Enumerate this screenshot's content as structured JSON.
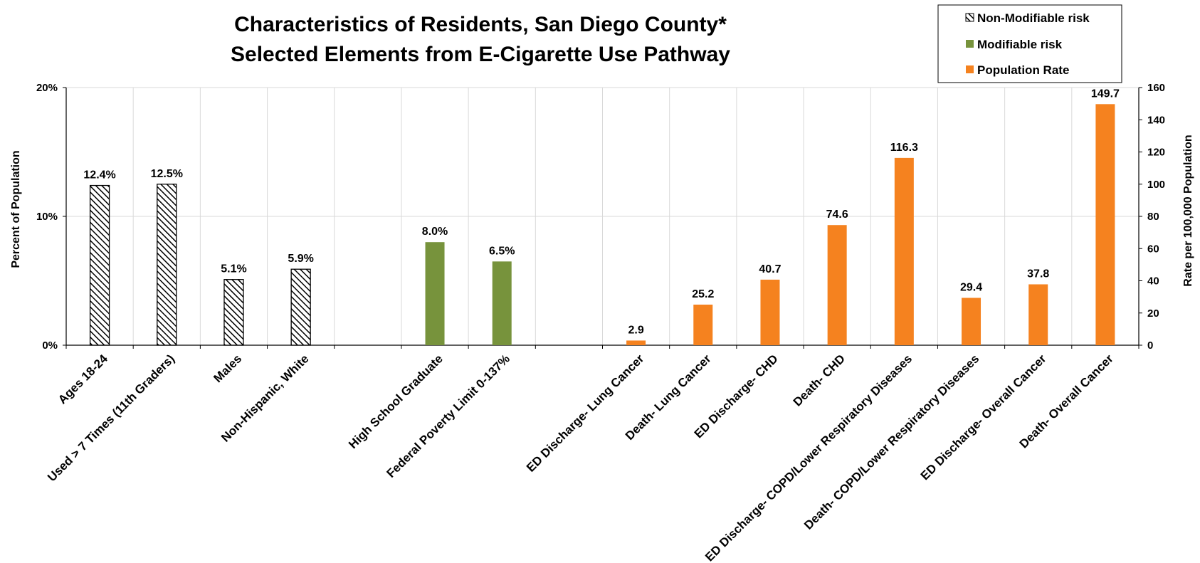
{
  "chart_data": {
    "type": "bar",
    "title": [
      "Characteristics of Residents, San Diego County*",
      "Selected Elements from E-Cigarette Use Pathway"
    ],
    "ylabel_left": "Percent of Population",
    "ylabel_right": "Rate per 100,000 Population",
    "ylim_left": [
      0,
      20
    ],
    "ylim_right": [
      0,
      160
    ],
    "yticks_left": [
      "0%",
      "10%",
      "20%"
    ],
    "yticks_right": [
      "0",
      "20",
      "40",
      "60",
      "80",
      "100",
      "120",
      "140",
      "160"
    ],
    "grid": true,
    "legend_position": "top-right",
    "colors": {
      "modifiable": "#77933c",
      "population": "#f5821f",
      "nonmodifiable_stroke": "#000000"
    },
    "categories": [
      "Ages 18-24",
      "Used > 7 Times (11th Graders)",
      "Males",
      "Non-Hispanic, White",
      "",
      "High School Graduate",
      "Federal Poverty Limit 0-137%",
      "",
      "ED Discharge- Lung Cancer",
      "Death- Lung Cancer",
      "ED Discharge- CHD",
      "Death- CHD",
      "ED Discharge- COPD/Lower Respiratory Diseases",
      "Death- COPD/Lower Respiratory Diseases",
      "ED Discharge- Overall Cancer",
      "Death- Overall Cancer"
    ],
    "series": [
      {
        "name": "Non-Modifiable risk",
        "axis": "left",
        "points": [
          {
            "index": 0,
            "value": 12.4,
            "label": "12.4%"
          },
          {
            "index": 1,
            "value": 12.5,
            "label": "12.5%"
          },
          {
            "index": 2,
            "value": 5.1,
            "label": "5.1%"
          },
          {
            "index": 3,
            "value": 5.9,
            "label": "5.9%"
          }
        ]
      },
      {
        "name": "Modifiable risk",
        "axis": "left",
        "points": [
          {
            "index": 5,
            "value": 8.0,
            "label": "8.0%"
          },
          {
            "index": 6,
            "value": 6.5,
            "label": "6.5%"
          }
        ]
      },
      {
        "name": "Population Rate",
        "axis": "right",
        "points": [
          {
            "index": 8,
            "value": 2.9,
            "label": "2.9"
          },
          {
            "index": 9,
            "value": 25.2,
            "label": "25.2"
          },
          {
            "index": 10,
            "value": 40.7,
            "label": "40.7"
          },
          {
            "index": 11,
            "value": 74.6,
            "label": "74.6"
          },
          {
            "index": 12,
            "value": 116.3,
            "label": "116.3"
          },
          {
            "index": 13,
            "value": 29.4,
            "label": "29.4"
          },
          {
            "index": 14,
            "value": 37.8,
            "label": "37.8"
          },
          {
            "index": 15,
            "value": 149.7,
            "label": "149.7"
          }
        ]
      }
    ]
  }
}
